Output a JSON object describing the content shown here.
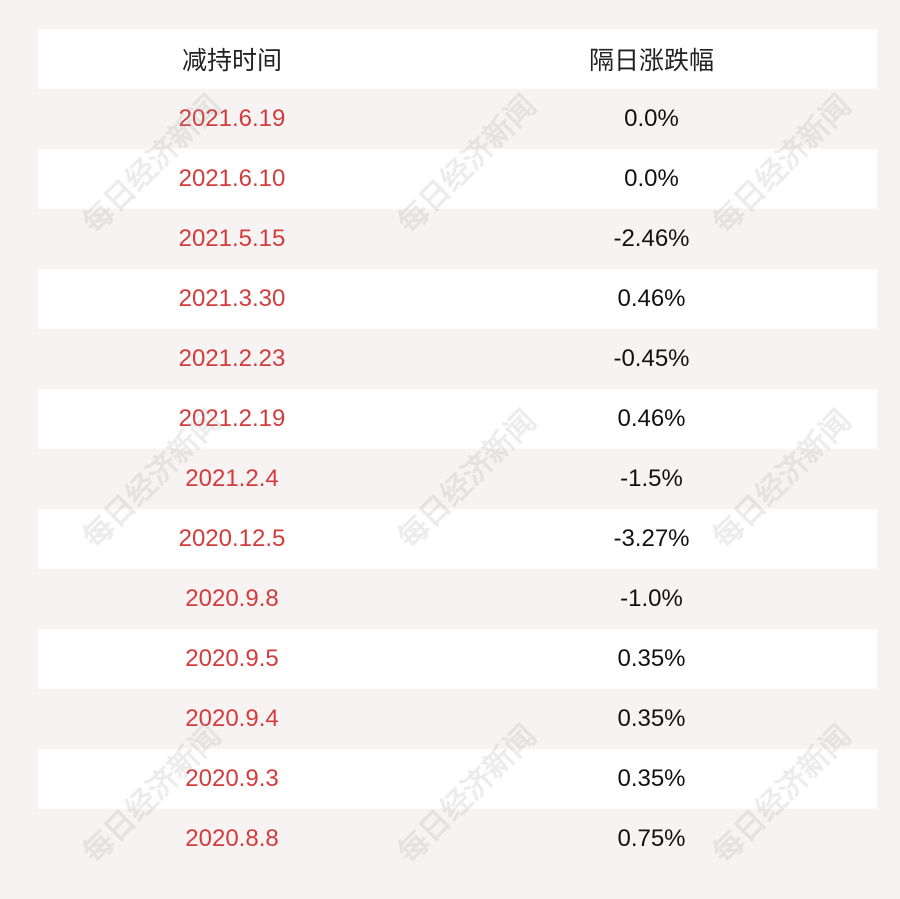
{
  "table": {
    "headers": [
      "减持时间",
      "隔日涨跌幅"
    ],
    "rows": [
      {
        "date": "2021.6.19",
        "change": "0.0%"
      },
      {
        "date": "2021.6.10",
        "change": "0.0%"
      },
      {
        "date": "2021.5.15",
        "change": "-2.46%"
      },
      {
        "date": "2021.3.30",
        "change": "0.46%"
      },
      {
        "date": "2021.2.23",
        "change": "-0.45%"
      },
      {
        "date": "2021.2.19",
        "change": "0.46%"
      },
      {
        "date": "2021.2.4",
        "change": "-1.5%"
      },
      {
        "date": "2020.12.5",
        "change": "-3.27%"
      },
      {
        "date": "2020.9.8",
        "change": "-1.0%"
      },
      {
        "date": "2020.9.5",
        "change": "0.35%"
      },
      {
        "date": "2020.9.4",
        "change": "0.35%"
      },
      {
        "date": "2020.9.3",
        "change": "0.35%"
      },
      {
        "date": "2020.8.8",
        "change": "0.75%"
      }
    ]
  },
  "watermark": "每日经济新闻",
  "colors": {
    "date_text": "#d23c3c",
    "row_white": "#ffffff",
    "row_tinted": "#f7f3f3"
  }
}
